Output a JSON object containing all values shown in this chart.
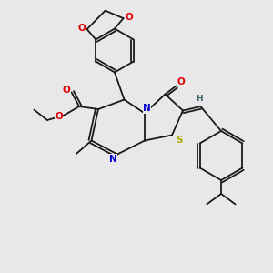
{
  "bg": "#e8e8ea",
  "bond_color": "#1a1a1a",
  "lw": 1.3,
  "atom_colors": {
    "O": "#e00000",
    "N": "#0000cc",
    "S": "#aaaa00",
    "H": "#336666",
    "C": "#1a1a1a"
  },
  "figsize": [
    3.0,
    3.0
  ],
  "dpi": 100,
  "xlim": [
    0,
    10
  ],
  "ylim": [
    0,
    10
  ]
}
